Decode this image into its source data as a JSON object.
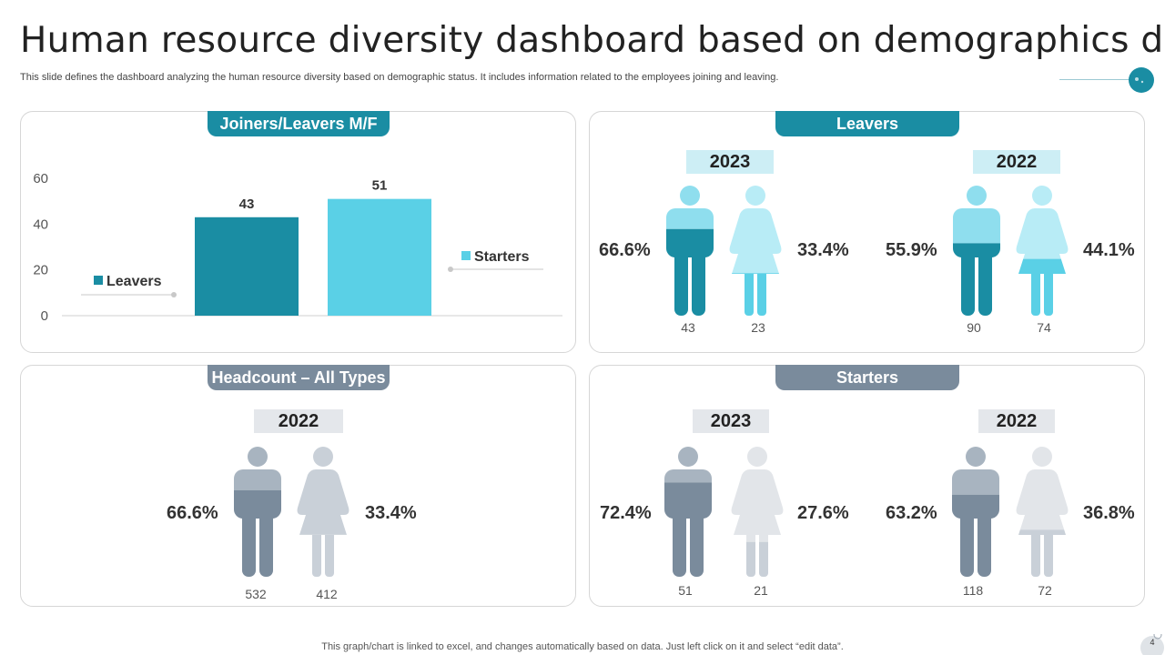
{
  "title": "Human resource diversity dashboard based on demographics data",
  "subtitle": "This slide defines the dashboard analyzing the human resource diversity based on demographic status. It includes information related to the employees joining and leaving.",
  "footer": "This graph/chart is linked to excel,  and changes automatically based on data. Just left click on it and select “edit data”.",
  "page_number": "4",
  "colors": {
    "teal_dark": "#1a8da3",
    "teal_light": "#5ad0e6",
    "teal_pale": "#b8ecf6",
    "slate_dark": "#7a8b9c",
    "slate_light": "#c9d0d8",
    "slate_pale": "#e2e5e9"
  },
  "panels": {
    "joiners": {
      "label": "Joiners/Leavers M/F"
    },
    "leavers": {
      "label": "Leavers",
      "groups": [
        {
          "year": "2023",
          "male_pct": "66.6%",
          "female_pct": "33.4%",
          "male_count": "43",
          "female_count": "23",
          "male_fill": 0.666,
          "female_fill": 0.334
        },
        {
          "year": "2022",
          "male_pct": "55.9%",
          "female_pct": "44.1%",
          "male_count": "90",
          "female_count": "74",
          "male_fill": 0.559,
          "female_fill": 0.441
        }
      ]
    },
    "headcount": {
      "label": "Headcount – All Types",
      "groups": [
        {
          "year": "2022",
          "male_pct": "66.6%",
          "female_pct": "33.4%",
          "male_count": "532",
          "female_count": "412",
          "male_fill": 0.666,
          "female_fill": 0.334
        }
      ]
    },
    "starters": {
      "label": "Starters",
      "groups": [
        {
          "year": "2023",
          "male_pct": "72.4%",
          "female_pct": "27.6%",
          "male_count": "51",
          "female_count": "21",
          "male_fill": 0.724,
          "female_fill": 0.276
        },
        {
          "year": "2022",
          "male_pct": "63.2%",
          "female_pct": "36.8%",
          "male_count": "118",
          "female_count": "72",
          "male_fill": 0.632,
          "female_fill": 0.368
        }
      ]
    }
  },
  "chart_data": {
    "type": "bar",
    "title": "Joiners/Leavers M/F",
    "categories": [
      "Leavers",
      "Starters"
    ],
    "values": [
      43,
      51
    ],
    "data_labels": [
      "43",
      "51"
    ],
    "ylim": [
      0,
      60
    ],
    "yticks": [
      "0",
      "20",
      "40",
      "60"
    ],
    "ytick_values": [
      0,
      20,
      40,
      60
    ],
    "legend": [
      "Leavers",
      "Starters"
    ],
    "bar_colors": [
      "#1a8da3",
      "#5ad0e6"
    ],
    "xlabel": "",
    "ylabel": ""
  }
}
